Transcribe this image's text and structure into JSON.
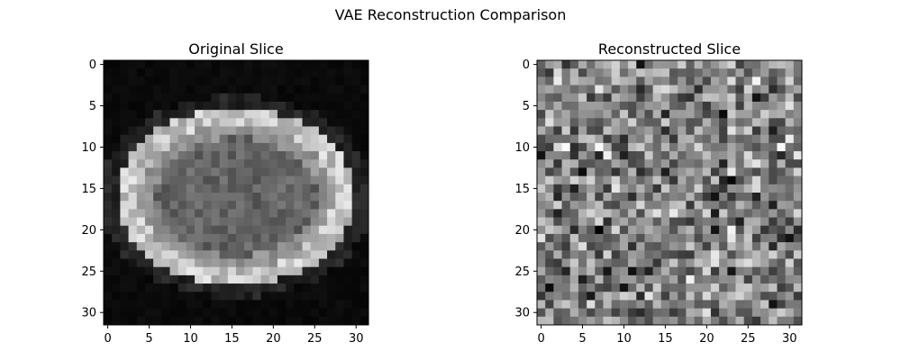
{
  "figure": {
    "title": "VAE Reconstruction Comparison"
  },
  "chart_data": [
    {
      "type": "heatmap",
      "title": "Original Slice",
      "colormap": "gray",
      "shape": [
        32,
        32
      ],
      "xlim": [
        -0.5,
        31.5
      ],
      "ylim": [
        31.5,
        -0.5
      ],
      "x_ticks": [
        0,
        5,
        10,
        15,
        20,
        25,
        30
      ],
      "y_ticks": [
        0,
        5,
        10,
        15,
        20,
        25,
        30
      ],
      "grid": false,
      "content": "brain MRI axial slice, bright ring around a darker mottled interior, black background"
    },
    {
      "type": "heatmap",
      "title": "Reconstructed Slice",
      "colormap": "gray",
      "shape": [
        32,
        32
      ],
      "xlim": [
        -0.5,
        31.5
      ],
      "ylim": [
        31.5,
        -0.5
      ],
      "x_ticks": [
        0,
        5,
        10,
        15,
        20,
        25,
        30
      ],
      "y_ticks": [
        0,
        5,
        10,
        15,
        20,
        25,
        30
      ],
      "grid": false,
      "content": "uniform random mid-gray noise"
    }
  ]
}
